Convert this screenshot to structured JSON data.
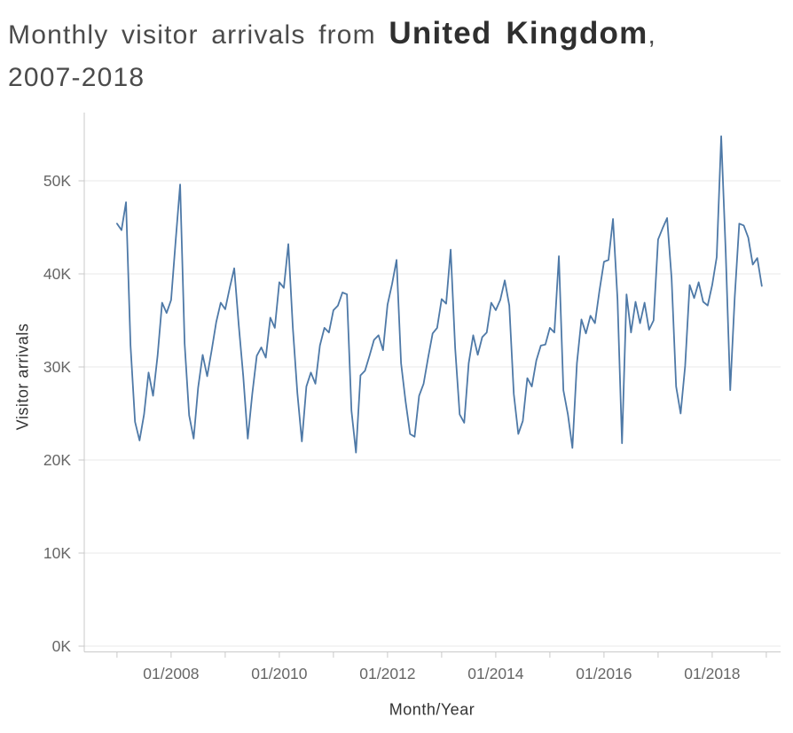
{
  "title": {
    "prefix": "Monthly visitor arrivals from ",
    "country": "United Kingdom",
    "comma": ",",
    "years": "2007-2018"
  },
  "chart_data": {
    "type": "line",
    "title": "Monthly visitor arrivals from United Kingdom, 2007-2018",
    "xlabel": "Month/Year",
    "ylabel": "Visitor arrivals",
    "x_start": "2007-01",
    "x_end": "2018-12",
    "x_step": "1 month",
    "x_tick_labels": [
      "01/2008",
      "01/2010",
      "01/2012",
      "01/2014",
      "01/2016",
      "01/2018"
    ],
    "y_tick_labels": [
      "0K",
      "10K",
      "20K",
      "30K",
      "40K",
      "50K"
    ],
    "ylim": [
      0,
      57
    ],
    "grid": "horizontal",
    "line_color": "#4e79a7",
    "series": [
      {
        "name": "Visitor arrivals (thousands)",
        "values": [
          45.4,
          44.7,
          47.7,
          32.3,
          24.1,
          22.1,
          24.9,
          29.4,
          26.9,
          31.2,
          36.9,
          35.8,
          37.2,
          43.5,
          49.6,
          32.5,
          24.8,
          22.3,
          27.8,
          31.3,
          29.0,
          31.8,
          34.8,
          36.9,
          36.2,
          38.5,
          40.6,
          34.5,
          29.0,
          22.3,
          27.1,
          31.2,
          32.1,
          31.0,
          35.3,
          34.2,
          39.1,
          38.5,
          43.2,
          34.2,
          27.2,
          22.0,
          27.9,
          29.4,
          28.2,
          32.3,
          34.2,
          33.7,
          36.1,
          36.6,
          38.0,
          37.8,
          25.3,
          20.8,
          29.1,
          29.6,
          31.2,
          32.9,
          33.4,
          31.8,
          36.7,
          38.9,
          41.5,
          30.4,
          26.3,
          22.8,
          22.5,
          26.9,
          28.2,
          31.0,
          33.6,
          34.2,
          37.3,
          36.8,
          42.6,
          32.0,
          24.9,
          24.0,
          30.4,
          33.4,
          31.3,
          33.2,
          33.7,
          36.9,
          36.1,
          37.2,
          39.3,
          36.6,
          27.1,
          22.8,
          24.2,
          28.8,
          27.9,
          30.7,
          32.3,
          32.4,
          34.2,
          33.7,
          41.9,
          27.5,
          24.9,
          21.3,
          30.4,
          35.1,
          33.6,
          35.5,
          34.7,
          38.2,
          41.3,
          41.5,
          45.9,
          37.3,
          21.8,
          37.8,
          33.7,
          37.0,
          34.7,
          36.9,
          34.0,
          35.0,
          43.7,
          44.9,
          46.0,
          39.5,
          27.9,
          25.0,
          30.1,
          38.8,
          37.4,
          39.1,
          37.0,
          36.6,
          38.8,
          41.8,
          54.8,
          42.3,
          27.5,
          37.5,
          45.4,
          45.2,
          43.9,
          41.0,
          41.7,
          38.7
        ]
      }
    ]
  }
}
